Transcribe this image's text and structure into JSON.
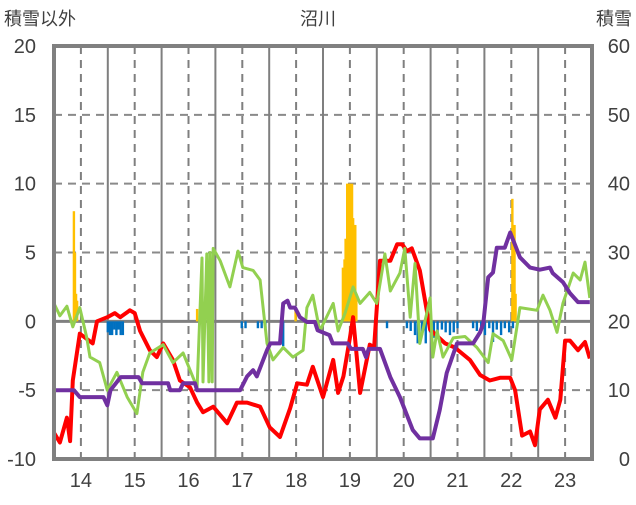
{
  "chart_data": {
    "type": "line",
    "title": "沼川",
    "ylabel_left": "積雪以外",
    "ylabel_right": "積雪",
    "xlim": [
      2013.5,
      2023.5
    ],
    "ylim_left": [
      -10,
      20
    ],
    "ylim_right": [
      0,
      60
    ],
    "x_ticks": [
      2014,
      2015,
      2016,
      2017,
      2018,
      2019,
      2020,
      2021,
      2022,
      2023
    ],
    "x_tick_labels": [
      "14",
      "15",
      "16",
      "17",
      "18",
      "19",
      "20",
      "21",
      "22",
      "23"
    ],
    "y_left_ticks": [
      20,
      15,
      10,
      5,
      0,
      -5,
      -10
    ],
    "y_left_tick_labels": [
      "20",
      "15",
      "10",
      "5",
      "0",
      "-5",
      "-10"
    ],
    "y_right_ticks": [
      60,
      50,
      40,
      30,
      20,
      10,
      0
    ],
    "y_right_tick_labels": [
      "60",
      "50",
      "40",
      "30",
      "20",
      "10",
      "0"
    ],
    "grid": true,
    "legend": "none",
    "series": [
      {
        "name": "series-red",
        "axis": "left",
        "color": "#ff0000",
        "points": [
          [
            2013.5,
            -8.1
          ],
          [
            2013.61,
            -8.8
          ],
          [
            2013.74,
            -7
          ],
          [
            2013.8,
            -8.7
          ],
          [
            2013.85,
            -4.3
          ],
          [
            2013.98,
            -0.9
          ],
          [
            2014.22,
            -1.6
          ],
          [
            2014.3,
            0
          ],
          [
            2014.49,
            0.3
          ],
          [
            2014.63,
            0.6
          ],
          [
            2014.73,
            0.3
          ],
          [
            2014.91,
            0.8
          ],
          [
            2015.0,
            0.6
          ],
          [
            2015.1,
            -0.7
          ],
          [
            2015.28,
            -2.1
          ],
          [
            2015.41,
            -2.6
          ],
          [
            2015.53,
            -1.6
          ],
          [
            2015.71,
            -2.8
          ],
          [
            2015.84,
            -4.3
          ],
          [
            2016.03,
            -4.8
          ],
          [
            2016.16,
            -5.9
          ],
          [
            2016.27,
            -6.6
          ],
          [
            2016.46,
            -6.2
          ],
          [
            2016.72,
            -7.4
          ],
          [
            2016.9,
            -5.9
          ],
          [
            2017.09,
            -5.9
          ],
          [
            2017.33,
            -6.2
          ],
          [
            2017.51,
            -7.7
          ],
          [
            2017.7,
            -8.4
          ],
          [
            2017.89,
            -6.3
          ],
          [
            2018.02,
            -4.5
          ],
          [
            2018.2,
            -4.6
          ],
          [
            2018.31,
            -3.3
          ],
          [
            2018.5,
            -5.5
          ],
          [
            2018.69,
            -2.8
          ],
          [
            2018.78,
            -5.2
          ],
          [
            2018.88,
            -4.0
          ],
          [
            2019.0,
            -1.2
          ],
          [
            2019.06,
            0.3
          ],
          [
            2019.19,
            -5.2
          ],
          [
            2019.37,
            -1.7
          ],
          [
            2019.45,
            -1.9
          ],
          [
            2019.56,
            4.4
          ],
          [
            2019.75,
            4.4
          ],
          [
            2019.88,
            5.6
          ],
          [
            2019.97,
            5.6
          ],
          [
            2020.06,
            5.1
          ],
          [
            2020.15,
            5.3
          ],
          [
            2020.3,
            3.7
          ],
          [
            2020.49,
            -0.6
          ],
          [
            2020.77,
            -1.6
          ],
          [
            2020.95,
            -1.9
          ],
          [
            2021.23,
            -2.8
          ],
          [
            2021.42,
            -3.9
          ],
          [
            2021.6,
            -4.3
          ],
          [
            2021.79,
            -4.1
          ],
          [
            2021.98,
            -4.1
          ],
          [
            2022.07,
            -5
          ],
          [
            2022.2,
            -8.3
          ],
          [
            2022.35,
            -8
          ],
          [
            2022.44,
            -9
          ],
          [
            2022.53,
            -6.4
          ],
          [
            2022.68,
            -5.7
          ],
          [
            2022.82,
            -7
          ],
          [
            2022.91,
            -5.7
          ],
          [
            2023.0,
            -1.4
          ],
          [
            2023.09,
            -1.4
          ],
          [
            2023.24,
            -2.1
          ],
          [
            2023.37,
            -1.5
          ],
          [
            2023.46,
            -2.7
          ]
        ]
      },
      {
        "name": "series-green",
        "axis": "left",
        "color": "#92d050",
        "points": [
          [
            2013.5,
            1.3
          ],
          [
            2013.61,
            0.4
          ],
          [
            2013.74,
            1.1
          ],
          [
            2013.85,
            -0.4
          ],
          [
            2013.98,
            1
          ],
          [
            2014.11,
            -1.2
          ],
          [
            2014.17,
            -2.6
          ],
          [
            2014.35,
            -3
          ],
          [
            2014.49,
            -5
          ],
          [
            2014.67,
            -3.7
          ],
          [
            2014.86,
            -5.5
          ],
          [
            2015.04,
            -6.7
          ],
          [
            2015.15,
            -3.7
          ],
          [
            2015.28,
            -2.3
          ],
          [
            2015.53,
            -1.7
          ],
          [
            2015.71,
            -3
          ],
          [
            2015.9,
            -2.3
          ],
          [
            2016.16,
            -4.8
          ],
          [
            2016.25,
            4.6
          ],
          [
            2016.27,
            -4.4
          ],
          [
            2016.34,
            4.9
          ],
          [
            2016.38,
            -4.4
          ],
          [
            2016.4,
            5.0
          ],
          [
            2016.44,
            -4.4
          ],
          [
            2016.46,
            5.3
          ],
          [
            2016.59,
            4.4
          ],
          [
            2016.77,
            2.5
          ],
          [
            2016.92,
            5.1
          ],
          [
            2017.01,
            3.9
          ],
          [
            2017.2,
            3.7
          ],
          [
            2017.33,
            3
          ],
          [
            2017.46,
            -1.6
          ],
          [
            2017.57,
            -2.8
          ],
          [
            2017.76,
            -1.9
          ],
          [
            2017.94,
            -2.6
          ],
          [
            2018.13,
            -2.1
          ],
          [
            2018.2,
            1
          ],
          [
            2018.31,
            1.9
          ],
          [
            2018.44,
            -0.7
          ],
          [
            2018.69,
            1.3
          ],
          [
            2018.78,
            -0.7
          ],
          [
            2018.91,
            0.6
          ],
          [
            2019.06,
            2.5
          ],
          [
            2019.19,
            1.3
          ],
          [
            2019.37,
            2.1
          ],
          [
            2019.5,
            1.3
          ],
          [
            2019.65,
            4.9
          ],
          [
            2019.75,
            2.2
          ],
          [
            2019.93,
            3.5
          ],
          [
            2020.02,
            5.3
          ],
          [
            2020.12,
            0.3
          ],
          [
            2020.21,
            4.2
          ],
          [
            2020.3,
            -1.6
          ],
          [
            2020.43,
            0.6
          ],
          [
            2020.49,
            1.7
          ],
          [
            2020.54,
            -2.6
          ],
          [
            2020.62,
            -0.7
          ],
          [
            2020.73,
            -2.6
          ],
          [
            2020.92,
            -1.2
          ],
          [
            2021.14,
            -1.1
          ],
          [
            2021.36,
            -1.9
          ],
          [
            2021.57,
            -3
          ],
          [
            2021.66,
            -0.9
          ],
          [
            2021.85,
            -1.4
          ],
          [
            2022.01,
            -2.8
          ],
          [
            2022.16,
            1
          ],
          [
            2022.48,
            0.8
          ],
          [
            2022.59,
            1.9
          ],
          [
            2022.72,
            0.8
          ],
          [
            2022.85,
            -0.8
          ],
          [
            2022.96,
            1.3
          ],
          [
            2023.15,
            3.5
          ],
          [
            2023.28,
            3.0
          ],
          [
            2023.37,
            4.3
          ],
          [
            2023.46,
            1.7
          ]
        ]
      },
      {
        "name": "series-purple",
        "axis": "right",
        "color": "#7030a0",
        "points": [
          [
            2013.5,
            10
          ],
          [
            2013.87,
            10
          ],
          [
            2013.98,
            9
          ],
          [
            2014.42,
            9
          ],
          [
            2014.49,
            7.8
          ],
          [
            2014.55,
            10
          ],
          [
            2014.74,
            11.9
          ],
          [
            2015.07,
            11.9
          ],
          [
            2015.14,
            11
          ],
          [
            2015.62,
            11
          ],
          [
            2015.66,
            10
          ],
          [
            2015.84,
            10
          ],
          [
            2015.9,
            11
          ],
          [
            2016.12,
            11
          ],
          [
            2016.16,
            10
          ],
          [
            2016.96,
            10
          ],
          [
            2017.09,
            12
          ],
          [
            2017.2,
            12.9
          ],
          [
            2017.27,
            12
          ],
          [
            2017.46,
            15.8
          ],
          [
            2017.52,
            16.8
          ],
          [
            2017.7,
            16.8
          ],
          [
            2017.76,
            22.6
          ],
          [
            2017.84,
            23
          ],
          [
            2017.89,
            22
          ],
          [
            2017.98,
            22
          ],
          [
            2018.07,
            20.6
          ],
          [
            2018.2,
            19.9
          ],
          [
            2018.35,
            19.9
          ],
          [
            2018.4,
            18.7
          ],
          [
            2018.62,
            18
          ],
          [
            2018.68,
            16.8
          ],
          [
            2018.96,
            16.8
          ],
          [
            2019.02,
            16
          ],
          [
            2019.24,
            16
          ],
          [
            2019.3,
            14.8
          ],
          [
            2019.35,
            16
          ],
          [
            2019.56,
            16
          ],
          [
            2019.75,
            11.9
          ],
          [
            2019.93,
            9
          ],
          [
            2020.17,
            4.2
          ],
          [
            2020.3,
            3
          ],
          [
            2020.54,
            3
          ],
          [
            2020.67,
            7.1
          ],
          [
            2020.8,
            12.5
          ],
          [
            2020.99,
            16.8
          ],
          [
            2021.29,
            16.8
          ],
          [
            2021.42,
            18.4
          ],
          [
            2021.48,
            19.7
          ],
          [
            2021.57,
            26.4
          ],
          [
            2021.66,
            27.1
          ],
          [
            2021.73,
            30.7
          ],
          [
            2021.88,
            30.7
          ],
          [
            2021.98,
            32.9
          ],
          [
            2022.16,
            29.3
          ],
          [
            2022.35,
            27.8
          ],
          [
            2022.53,
            27.5
          ],
          [
            2022.72,
            27.8
          ],
          [
            2022.77,
            27
          ],
          [
            2022.96,
            25.7
          ],
          [
            2023.09,
            24.1
          ],
          [
            2023.24,
            22.8
          ],
          [
            2023.46,
            22.8
          ]
        ]
      }
    ],
    "bars": [
      {
        "name": "bars-orange",
        "axis": "left",
        "color": "#ffc000",
        "points": [
          [
            2013.87,
            8
          ],
          [
            2013.89,
            5
          ],
          [
            2013.91,
            2
          ],
          [
            2013.93,
            1.5
          ],
          [
            2016.16,
            0.9
          ],
          [
            2017.99,
            0.9
          ],
          [
            2018.87,
            3.9
          ],
          [
            2018.9,
            4.5
          ],
          [
            2018.92,
            6
          ],
          [
            2018.95,
            10
          ],
          [
            2018.98,
            10
          ],
          [
            2019.0,
            10
          ],
          [
            2019.02,
            7.9
          ],
          [
            2019.04,
            10
          ],
          [
            2019.06,
            7.5
          ],
          [
            2019.08,
            7
          ],
          [
            2019.1,
            7
          ],
          [
            2019.12,
            2
          ],
          [
            2022.02,
            8.9
          ],
          [
            2022.04,
            7
          ],
          [
            2022.06,
            7
          ],
          [
            2022.08,
            2
          ]
        ]
      },
      {
        "name": "bars-blue",
        "axis": "left",
        "color": "#0070c0",
        "points": [
          [
            2014.5,
            -0.8
          ],
          [
            2014.54,
            -1
          ],
          [
            2014.58,
            -1
          ],
          [
            2014.62,
            -0.6
          ],
          [
            2014.66,
            -1
          ],
          [
            2014.7,
            -0.6
          ],
          [
            2014.74,
            -1
          ],
          [
            2014.78,
            -1
          ],
          [
            2016.99,
            -0.5
          ],
          [
            2017.06,
            -0.5
          ],
          [
            2017.29,
            -0.5
          ],
          [
            2017.36,
            -0.5
          ],
          [
            2017.43,
            -0.5
          ],
          [
            2017.76,
            -1.8
          ],
          [
            2019.47,
            -0.5
          ],
          [
            2019.69,
            -0.5
          ],
          [
            2020.06,
            -0.5
          ],
          [
            2020.13,
            -0.7
          ],
          [
            2020.21,
            -1.0
          ],
          [
            2020.26,
            -1.6
          ],
          [
            2020.34,
            -1.0
          ],
          [
            2020.41,
            -1.6
          ],
          [
            2020.49,
            -0.8
          ],
          [
            2020.56,
            -1.2
          ],
          [
            2020.63,
            -1.0
          ],
          [
            2020.71,
            -0.6
          ],
          [
            2020.78,
            -0.8
          ],
          [
            2020.86,
            -1.0
          ],
          [
            2020.93,
            -0.8
          ],
          [
            2021.0,
            -0.5
          ],
          [
            2021.29,
            -0.5
          ],
          [
            2021.36,
            -0.7
          ],
          [
            2021.44,
            -0.5
          ],
          [
            2021.51,
            -1.0
          ],
          [
            2021.59,
            -0.5
          ],
          [
            2021.66,
            -1.5
          ],
          [
            2021.73,
            -0.6
          ],
          [
            2021.81,
            -1.0
          ],
          [
            2021.88,
            -0.5
          ],
          [
            2021.96,
            -0.8
          ],
          [
            2022.03,
            -0.5
          ]
        ]
      }
    ]
  }
}
